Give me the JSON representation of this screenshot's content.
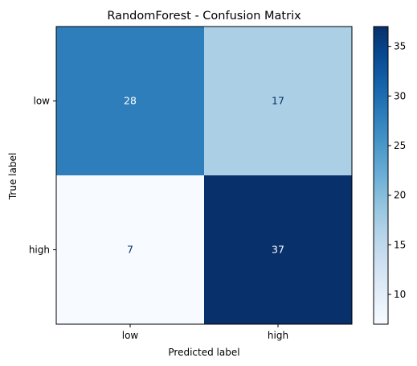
{
  "chart_data": {
    "type": "heatmap",
    "title": "RandomForest - Confusion Matrix",
    "xlabel": "Predicted label",
    "ylabel": "True label",
    "x_categories": [
      "low",
      "high"
    ],
    "y_categories": [
      "low",
      "high"
    ],
    "values": [
      [
        28,
        17
      ],
      [
        7,
        37
      ]
    ],
    "colormap": "Blues",
    "colorbar": {
      "min": 7,
      "max": 37,
      "ticks": [
        10,
        15,
        20,
        25,
        30,
        35
      ]
    },
    "grid": false
  }
}
